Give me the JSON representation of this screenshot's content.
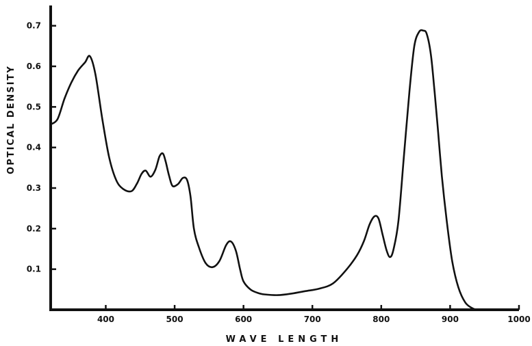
{
  "chart_data": {
    "type": "line",
    "xlabel": "WAVE LENGTH",
    "ylabel": "OPTICAL DENSITY",
    "xlim": [
      320,
      1000
    ],
    "ylim": [
      0,
      0.75
    ],
    "x_ticks": [
      400,
      500,
      600,
      700,
      800,
      900,
      1000
    ],
    "y_ticks": [
      0.1,
      0.2,
      0.3,
      0.4,
      0.5,
      0.6,
      0.7
    ],
    "x_tick_labels": [
      "400",
      "500",
      "600",
      "700",
      "800",
      "900",
      "1000"
    ],
    "y_tick_labels": [
      "0.1",
      "0.2",
      "0.3",
      "0.4",
      "0.5",
      "0.6",
      "0.7"
    ],
    "grid": false,
    "series": [
      {
        "x": [
          320,
          330,
          340,
          350,
          360,
          370,
          377,
          385,
          395,
          405,
          415,
          425,
          437,
          445,
          452,
          458,
          465,
          472,
          478,
          483,
          487,
          492,
          497,
          505,
          512,
          518,
          523,
          528,
          535,
          545,
          555,
          565,
          575,
          582,
          589,
          595,
          600,
          610,
          620,
          630,
          650,
          670,
          690,
          710,
          730,
          750,
          765,
          775,
          783,
          790,
          796,
          802,
          808,
          813,
          818,
          825,
          833,
          841,
          848,
          855,
          861,
          866,
          872,
          877,
          882,
          888,
          895,
          903,
          912,
          922,
          932,
          940,
          950,
          960,
          970,
          980,
          990
        ],
        "y": [
          0.457,
          0.47,
          0.52,
          0.56,
          0.59,
          0.61,
          0.625,
          0.58,
          0.47,
          0.375,
          0.32,
          0.298,
          0.292,
          0.31,
          0.335,
          0.343,
          0.328,
          0.345,
          0.378,
          0.385,
          0.365,
          0.33,
          0.305,
          0.31,
          0.325,
          0.32,
          0.28,
          0.2,
          0.155,
          0.115,
          0.105,
          0.12,
          0.16,
          0.168,
          0.145,
          0.1,
          0.07,
          0.05,
          0.042,
          0.038,
          0.036,
          0.04,
          0.046,
          0.052,
          0.065,
          0.1,
          0.135,
          0.17,
          0.21,
          0.23,
          0.225,
          0.185,
          0.145,
          0.13,
          0.15,
          0.22,
          0.38,
          0.54,
          0.65,
          0.685,
          0.688,
          0.68,
          0.63,
          0.545,
          0.45,
          0.33,
          0.22,
          0.12,
          0.055,
          0.018,
          0.004,
          0.0,
          0.0,
          0.0,
          0.0,
          0.0,
          0.0
        ]
      }
    ]
  }
}
